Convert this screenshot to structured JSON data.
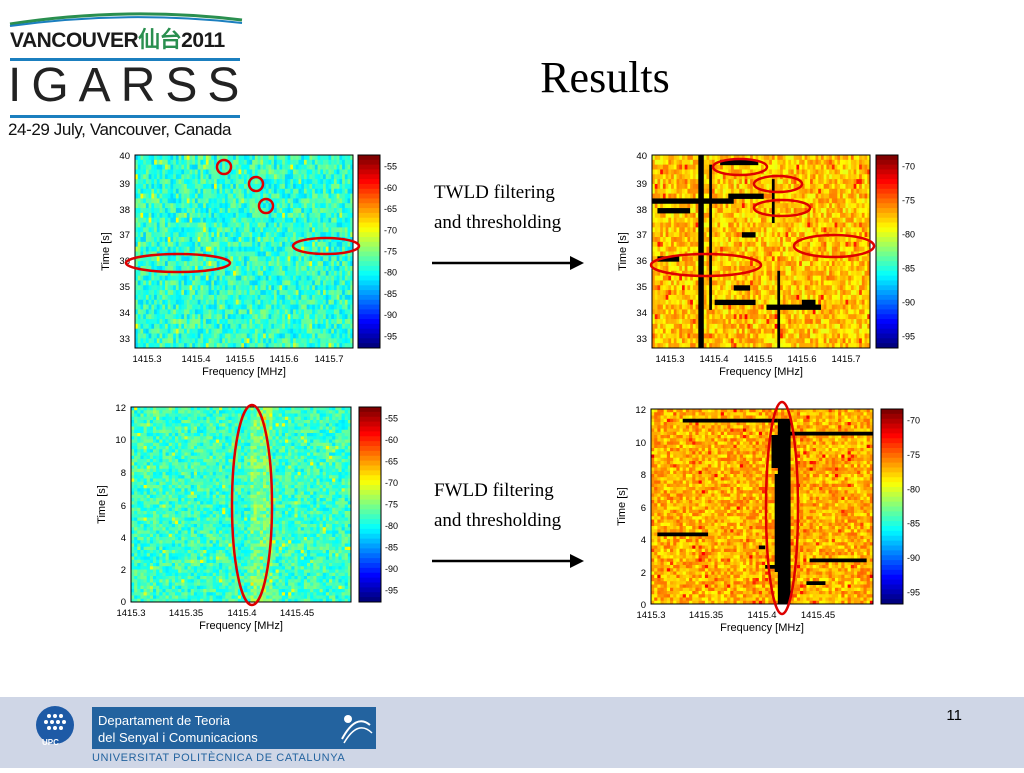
{
  "logo": {
    "city_label": "VANCOUVER",
    "cjk_label": "仙台",
    "year_label": "2011",
    "conference_label": "IGARSS",
    "date_location": "24-29 July, Vancouver, Canada"
  },
  "slide": {
    "title": "Results",
    "page_number": "11",
    "notes": [
      {
        "line1": "TWLD filtering",
        "line2": "and thresholding"
      },
      {
        "line1": "FWLD filtering",
        "line2": "and thresholding"
      }
    ]
  },
  "footer": {
    "dept_line1": "Departament de Teoria",
    "dept_line2": "del Senyal i Comunicacions",
    "university": "UNIVERSITAT POLITÈCNICA DE CATALUNYA",
    "upc_label": "UPC"
  },
  "chart_data": [
    {
      "type": "heatmap",
      "xlabel": "Frequency [MHz]",
      "ylabel": "Time [s]",
      "x_ticks": [
        "1415.3",
        "1415.4",
        "1415.5",
        "1415.6",
        "1415.7"
      ],
      "y_ticks": [
        "33",
        "34",
        "35",
        "36",
        "37",
        "38",
        "39",
        "40"
      ],
      "colorbar_ticks": [
        "-55",
        "-60",
        "-65",
        "-70",
        "-75",
        "-80",
        "-85",
        "-90",
        "-95"
      ],
      "colormap": "jet",
      "highlight": "cyan-green background with ellipse/circle markings"
    },
    {
      "type": "heatmap",
      "xlabel": "Frequency [MHz]",
      "ylabel": "Time [s]",
      "x_ticks": [
        "1415.3",
        "1415.4",
        "1415.5",
        "1415.6",
        "1415.7"
      ],
      "y_ticks": [
        "33",
        "34",
        "35",
        "36",
        "37",
        "38",
        "39",
        "40"
      ],
      "colorbar_ticks": [
        "-70",
        "-75",
        "-80",
        "-85",
        "-90",
        "-95"
      ],
      "colormap": "jet",
      "highlight": "yellow-orange background with black flagged segments"
    },
    {
      "type": "heatmap",
      "xlabel": "Frequency [MHz]",
      "ylabel": "Time [s]",
      "x_ticks": [
        "1415.3",
        "1415.35",
        "1415.4",
        "1415.45"
      ],
      "y_ticks": [
        "0",
        "2",
        "4",
        "6",
        "8",
        "10",
        "12"
      ],
      "colorbar_ticks": [
        "-55",
        "-60",
        "-65",
        "-70",
        "-75",
        "-80",
        "-85",
        "-90",
        "-95"
      ],
      "colormap": "jet",
      "highlight": "cyan-green background with vertical ellipse"
    },
    {
      "type": "heatmap",
      "xlabel": "Frequency [MHz]",
      "ylabel": "Time [s]",
      "x_ticks": [
        "1415.3",
        "1415.35",
        "1415.4",
        "1415.45"
      ],
      "y_ticks": [
        "0",
        "2",
        "4",
        "6",
        "8",
        "10",
        "12"
      ],
      "colorbar_ticks": [
        "-70",
        "-75",
        "-80",
        "-85",
        "-90",
        "-95"
      ],
      "colormap": "jet",
      "highlight": "yellow-orange background with black flagged column"
    }
  ]
}
